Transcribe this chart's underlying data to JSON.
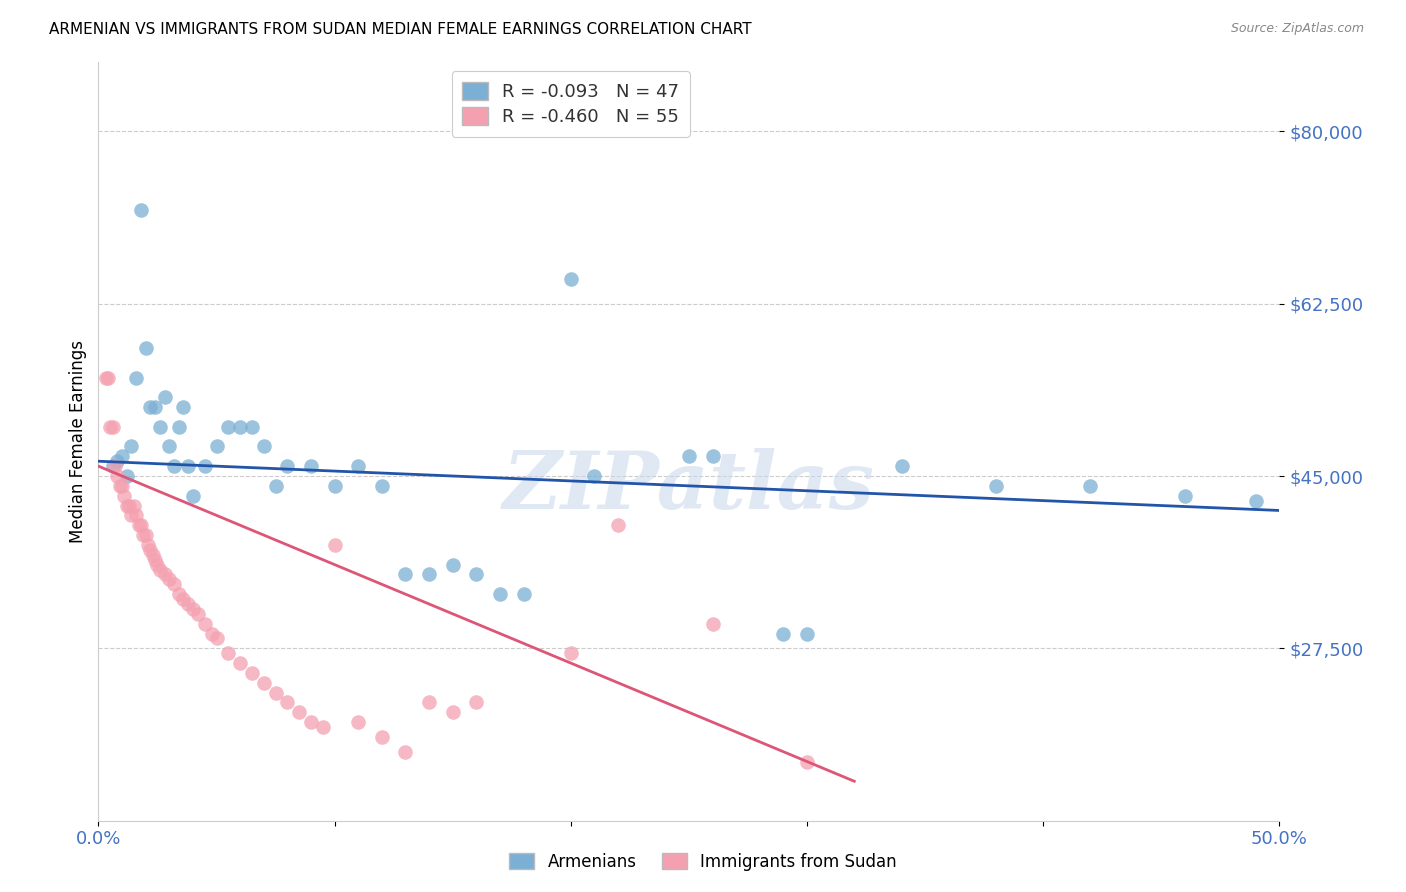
{
  "title": "ARMENIAN VS IMMIGRANTS FROM SUDAN MEDIAN FEMALE EARNINGS CORRELATION CHART",
  "source": "Source: ZipAtlas.com",
  "ylabel": "Median Female Earnings",
  "yticks": [
    27500,
    45000,
    62500,
    80000
  ],
  "ytick_labels": [
    "$27,500",
    "$45,000",
    "$62,500",
    "$80,000"
  ],
  "xlim": [
    0.0,
    0.5
  ],
  "ylim": [
    10000,
    87000
  ],
  "armenian_color": "#7bafd4",
  "sudan_color": "#f4a0b0",
  "armenian_line_color": "#2255aa",
  "sudan_line_color": "#dd5577",
  "background_color": "#ffffff",
  "watermark": "ZIPatlas",
  "armenian_r": "-0.093",
  "armenian_n": "47",
  "sudan_r": "-0.460",
  "sudan_n": "55",
  "legend_label1": "Armenians",
  "legend_label2": "Immigrants from Sudan",
  "armenian_points": [
    [
      0.006,
      46000
    ],
    [
      0.008,
      46500
    ],
    [
      0.01,
      47000
    ],
    [
      0.012,
      45000
    ],
    [
      0.014,
      48000
    ],
    [
      0.016,
      55000
    ],
    [
      0.018,
      72000
    ],
    [
      0.02,
      58000
    ],
    [
      0.022,
      52000
    ],
    [
      0.024,
      52000
    ],
    [
      0.026,
      50000
    ],
    [
      0.028,
      53000
    ],
    [
      0.03,
      48000
    ],
    [
      0.032,
      46000
    ],
    [
      0.034,
      50000
    ],
    [
      0.036,
      52000
    ],
    [
      0.038,
      46000
    ],
    [
      0.04,
      43000
    ],
    [
      0.045,
      46000
    ],
    [
      0.05,
      48000
    ],
    [
      0.055,
      50000
    ],
    [
      0.06,
      50000
    ],
    [
      0.065,
      50000
    ],
    [
      0.07,
      48000
    ],
    [
      0.075,
      44000
    ],
    [
      0.08,
      46000
    ],
    [
      0.09,
      46000
    ],
    [
      0.1,
      44000
    ],
    [
      0.11,
      46000
    ],
    [
      0.12,
      44000
    ],
    [
      0.13,
      35000
    ],
    [
      0.14,
      35000
    ],
    [
      0.15,
      36000
    ],
    [
      0.16,
      35000
    ],
    [
      0.17,
      33000
    ],
    [
      0.18,
      33000
    ],
    [
      0.2,
      65000
    ],
    [
      0.21,
      45000
    ],
    [
      0.25,
      47000
    ],
    [
      0.26,
      47000
    ],
    [
      0.29,
      29000
    ],
    [
      0.3,
      29000
    ],
    [
      0.34,
      46000
    ],
    [
      0.38,
      44000
    ],
    [
      0.42,
      44000
    ],
    [
      0.46,
      43000
    ],
    [
      0.49,
      42500
    ]
  ],
  "sudan_points": [
    [
      0.003,
      55000
    ],
    [
      0.004,
      55000
    ],
    [
      0.005,
      50000
    ],
    [
      0.006,
      50000
    ],
    [
      0.007,
      46000
    ],
    [
      0.008,
      45000
    ],
    [
      0.009,
      44000
    ],
    [
      0.01,
      44000
    ],
    [
      0.011,
      43000
    ],
    [
      0.012,
      42000
    ],
    [
      0.013,
      42000
    ],
    [
      0.014,
      41000
    ],
    [
      0.015,
      42000
    ],
    [
      0.016,
      41000
    ],
    [
      0.017,
      40000
    ],
    [
      0.018,
      40000
    ],
    [
      0.019,
      39000
    ],
    [
      0.02,
      39000
    ],
    [
      0.021,
      38000
    ],
    [
      0.022,
      37500
    ],
    [
      0.023,
      37000
    ],
    [
      0.024,
      36500
    ],
    [
      0.025,
      36000
    ],
    [
      0.026,
      35500
    ],
    [
      0.028,
      35000
    ],
    [
      0.03,
      34500
    ],
    [
      0.032,
      34000
    ],
    [
      0.034,
      33000
    ],
    [
      0.036,
      32500
    ],
    [
      0.038,
      32000
    ],
    [
      0.04,
      31500
    ],
    [
      0.042,
      31000
    ],
    [
      0.045,
      30000
    ],
    [
      0.048,
      29000
    ],
    [
      0.05,
      28500
    ],
    [
      0.055,
      27000
    ],
    [
      0.06,
      26000
    ],
    [
      0.065,
      25000
    ],
    [
      0.07,
      24000
    ],
    [
      0.075,
      23000
    ],
    [
      0.08,
      22000
    ],
    [
      0.085,
      21000
    ],
    [
      0.09,
      20000
    ],
    [
      0.095,
      19500
    ],
    [
      0.1,
      38000
    ],
    [
      0.11,
      20000
    ],
    [
      0.12,
      18500
    ],
    [
      0.13,
      17000
    ],
    [
      0.14,
      22000
    ],
    [
      0.15,
      21000
    ],
    [
      0.16,
      22000
    ],
    [
      0.2,
      27000
    ],
    [
      0.22,
      40000
    ],
    [
      0.26,
      30000
    ],
    [
      0.3,
      16000
    ]
  ],
  "blue_line_x": [
    0.0,
    0.5
  ],
  "blue_line_y": [
    46500,
    41500
  ],
  "pink_line_x": [
    0.0,
    0.32
  ],
  "pink_line_y": [
    46000,
    14000
  ]
}
